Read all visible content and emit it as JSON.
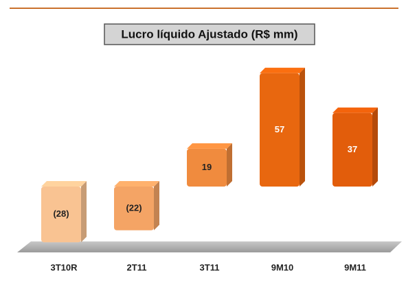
{
  "chart_data": {
    "type": "bar3d",
    "title": "Lucro líquido Ajustado (R$ mm)",
    "categories": [
      "3T10R",
      "2T11",
      "3T11",
      "9M10",
      "9M11"
    ],
    "values": [
      -28,
      -22,
      19,
      57,
      37
    ],
    "value_labels": [
      "(28)",
      "(22)",
      "19",
      "57",
      "37"
    ],
    "colors": [
      "#f9c392",
      "#f4a465",
      "#f08b3e",
      "#e8670f",
      "#e25d0b"
    ],
    "value_label_colors": [
      "#222222",
      "#222222",
      "#222222",
      "#ffffff",
      "#ffffff"
    ]
  }
}
